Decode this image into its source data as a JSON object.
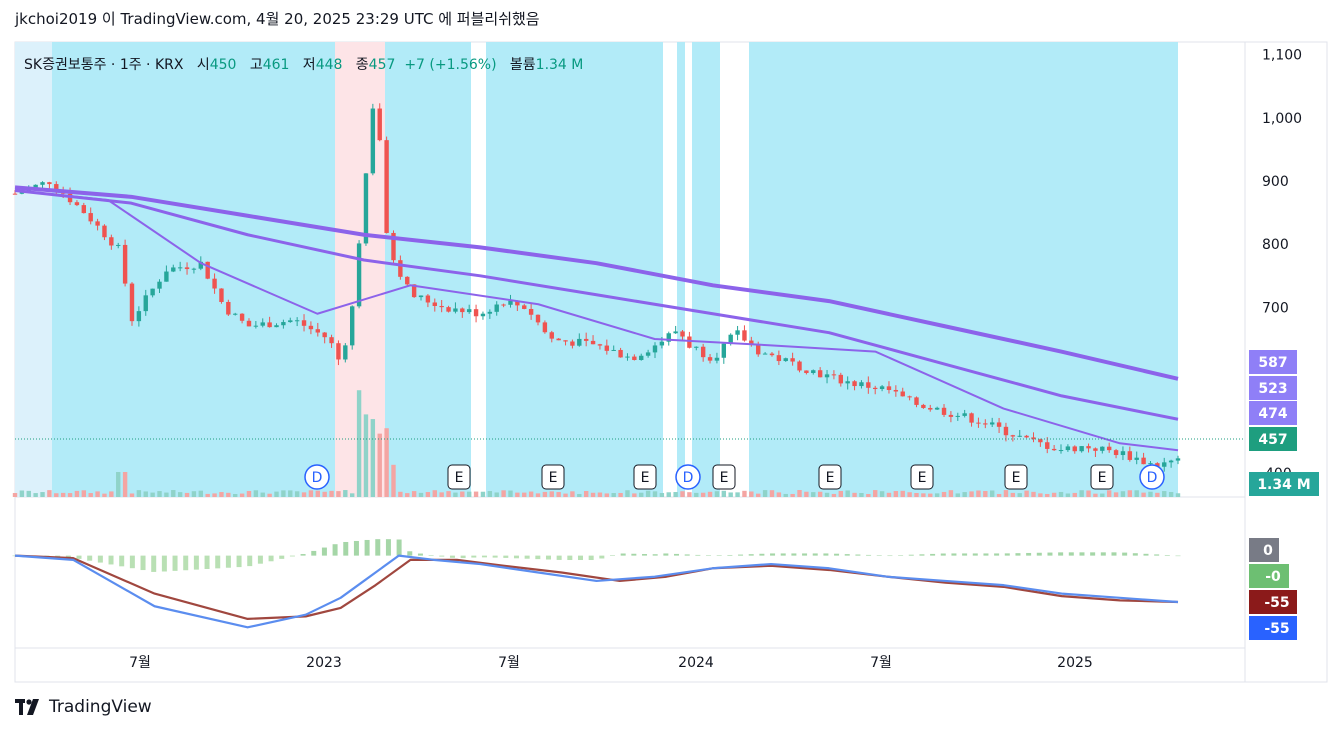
{
  "header": {
    "text": "jkchoi2019 이 TradingView.com, 4월 20, 2025 23:29 UTC 에 퍼블리쉬했음"
  },
  "legend": {
    "symbol": "SK증권보통주 · 1주 · KRX",
    "open_label": "시",
    "open": "450",
    "high_label": "고",
    "high": "461",
    "low_label": "저",
    "low": "448",
    "close_label": "종",
    "close": "457",
    "change": "+7 (+1.56%)",
    "volume_label": "볼륨",
    "volume": "1.34 M"
  },
  "price_axis": {
    "ticks": [
      "1,100",
      "1,000",
      "900",
      "800",
      "700"
    ],
    "partial_tick": "400",
    "badges": [
      {
        "label": "587",
        "color": "#8f7ff7"
      },
      {
        "label": "523",
        "color": "#8f7ff7"
      },
      {
        "label": "474",
        "color": "#8f7ff7"
      },
      {
        "label": "457",
        "color": "#1e9e7f"
      },
      {
        "label": "1.34 M",
        "color": "#26a69a"
      }
    ]
  },
  "macd_axis": {
    "badges": [
      {
        "label": "0",
        "color": "#787b86"
      },
      {
        "label": "-0",
        "color": "#6dbf72"
      },
      {
        "label": "-55",
        "color": "#8b1a1a"
      },
      {
        "label": "-55",
        "color": "#2962ff"
      }
    ]
  },
  "time_axis": {
    "ticks": [
      "7월",
      "2023",
      "7월",
      "2024",
      "7월",
      "2025"
    ]
  },
  "events": [
    "D",
    "E",
    "E",
    "E",
    "D",
    "E",
    "E",
    "E",
    "E",
    "E",
    "D"
  ],
  "footer": {
    "brand": "TradingView"
  },
  "colors": {
    "up": "#26a69a",
    "down": "#ef5350",
    "bg_cyan": "#b2ebf8",
    "bg_pink": "#fde4e7",
    "ma": "#8c63ea",
    "ma_gold": "#f5c77e",
    "macd": "#5b8def",
    "signal": "#a0473f"
  },
  "chart_data": {
    "type": "candlestick",
    "ylim": [
      400,
      1120
    ],
    "moving_averages": {
      "long": [
        [
          0,
          890
        ],
        [
          0.1,
          875
        ],
        [
          0.2,
          845
        ],
        [
          0.3,
          815
        ],
        [
          0.4,
          795
        ],
        [
          0.5,
          770
        ],
        [
          0.6,
          735
        ],
        [
          0.7,
          710
        ],
        [
          0.8,
          670
        ],
        [
          0.9,
          630
        ],
        [
          1.0,
          587
        ]
      ],
      "mid": [
        [
          0,
          885
        ],
        [
          0.1,
          865
        ],
        [
          0.2,
          815
        ],
        [
          0.3,
          775
        ],
        [
          0.4,
          750
        ],
        [
          0.5,
          720
        ],
        [
          0.6,
          690
        ],
        [
          0.7,
          660
        ],
        [
          0.8,
          610
        ],
        [
          0.9,
          560
        ],
        [
          1.0,
          523
        ]
      ],
      "short": [
        [
          0,
          885
        ],
        [
          0.08,
          870
        ],
        [
          0.16,
          770
        ],
        [
          0.26,
          690
        ],
        [
          0.34,
          735
        ],
        [
          0.45,
          705
        ],
        [
          0.55,
          650
        ],
        [
          0.65,
          640
        ],
        [
          0.74,
          630
        ],
        [
          0.85,
          540
        ],
        [
          0.95,
          485
        ],
        [
          1.0,
          474
        ]
      ]
    },
    "price_path": [
      [
        0,
        880
      ],
      [
        0.03,
        900
      ],
      [
        0.06,
        850
      ],
      [
        0.09,
        790
      ],
      [
        0.1,
        680
      ],
      [
        0.13,
        760
      ],
      [
        0.16,
        770
      ],
      [
        0.18,
        700
      ],
      [
        0.2,
        670
      ],
      [
        0.24,
        680
      ],
      [
        0.27,
        650
      ],
      [
        0.28,
        610
      ],
      [
        0.29,
        700
      ],
      [
        0.3,
        880
      ],
      [
        0.31,
        1060
      ],
      [
        0.32,
        800
      ],
      [
        0.34,
        720
      ],
      [
        0.37,
        700
      ],
      [
        0.4,
        690
      ],
      [
        0.42,
        710
      ],
      [
        0.44,
        700
      ],
      [
        0.46,
        650
      ],
      [
        0.5,
        640
      ],
      [
        0.53,
        620
      ],
      [
        0.55,
        640
      ],
      [
        0.57,
        665
      ],
      [
        0.58,
        640
      ],
      [
        0.6,
        620
      ],
      [
        0.62,
        660
      ],
      [
        0.64,
        630
      ],
      [
        0.67,
        610
      ],
      [
        0.7,
        590
      ],
      [
        0.72,
        580
      ],
      [
        0.75,
        570
      ],
      [
        0.77,
        550
      ],
      [
        0.79,
        540
      ],
      [
        0.81,
        530
      ],
      [
        0.83,
        520
      ],
      [
        0.85,
        505
      ],
      [
        0.87,
        490
      ],
      [
        0.9,
        475
      ],
      [
        0.92,
        480
      ],
      [
        0.95,
        470
      ],
      [
        0.98,
        450
      ],
      [
        1.0,
        457
      ]
    ],
    "macd": {
      "ylim": [
        -100,
        60
      ],
      "macd_line": [
        [
          0,
          0
        ],
        [
          0.05,
          -5
        ],
        [
          0.12,
          -60
        ],
        [
          0.2,
          -85
        ],
        [
          0.25,
          -70
        ],
        [
          0.28,
          -50
        ],
        [
          0.3,
          -30
        ],
        [
          0.33,
          0
        ],
        [
          0.36,
          -5
        ],
        [
          0.4,
          -10
        ],
        [
          0.45,
          -20
        ],
        [
          0.5,
          -30
        ],
        [
          0.55,
          -25
        ],
        [
          0.6,
          -15
        ],
        [
          0.65,
          -10
        ],
        [
          0.7,
          -15
        ],
        [
          0.75,
          -25
        ],
        [
          0.8,
          -30
        ],
        [
          0.85,
          -35
        ],
        [
          0.9,
          -45
        ],
        [
          0.95,
          -50
        ],
        [
          1.0,
          -55
        ]
      ],
      "signal_line": [
        [
          0,
          0
        ],
        [
          0.05,
          -3
        ],
        [
          0.12,
          -45
        ],
        [
          0.2,
          -75
        ],
        [
          0.25,
          -72
        ],
        [
          0.28,
          -62
        ],
        [
          0.31,
          -35
        ],
        [
          0.34,
          -5
        ],
        [
          0.38,
          -5
        ],
        [
          0.42,
          -12
        ],
        [
          0.47,
          -20
        ],
        [
          0.52,
          -30
        ],
        [
          0.56,
          -25
        ],
        [
          0.6,
          -15
        ],
        [
          0.65,
          -12
        ],
        [
          0.7,
          -17
        ],
        [
          0.75,
          -25
        ],
        [
          0.8,
          -32
        ],
        [
          0.85,
          -37
        ],
        [
          0.9,
          -48
        ],
        [
          0.95,
          -53
        ],
        [
          1.0,
          -55
        ]
      ]
    }
  }
}
